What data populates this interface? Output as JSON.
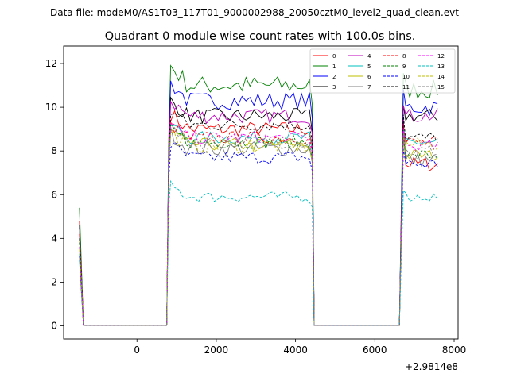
{
  "suptitle": "Data file: modeM0/AS1T03_117T01_9000002988_20050cztM0_level2_quad_clean.evt",
  "chart_data": {
    "type": "line",
    "title": "Quadrant 0 module wise count rates with 100.0s bins.",
    "xlabel": "",
    "ylabel": "",
    "offset_text": "+2.9814e8",
    "xlim": [
      -1850,
      8100
    ],
    "ylim": [
      -0.6,
      12.8
    ],
    "xticks": [
      0,
      2000,
      4000,
      6000,
      8000
    ],
    "xtick_labels": [
      "0",
      "2000",
      "4000",
      "6000",
      "8000"
    ],
    "yticks": [
      0,
      2,
      4,
      6,
      8,
      10,
      12
    ],
    "ytick_labels": [
      "0",
      "2",
      "4",
      "6",
      "8",
      "10",
      "12"
    ],
    "legend_position": "top-right",
    "segments": [
      {
        "x_start": -1450,
        "x_end": 730,
        "active_x_start": -1350,
        "active_x_end": 730,
        "dead": true
      },
      {
        "x_start": 750,
        "x_end": 4450
      },
      {
        "x_start": 4450,
        "x_end": 6650,
        "active_x_start": 4450,
        "active_x_end": 6650,
        "dead": true
      },
      {
        "x_start": 6650,
        "x_end": 7650
      }
    ],
    "series": [
      {
        "name": "0",
        "color": "#ff0000",
        "dash": "solid",
        "first": 4.8,
        "ramp": 7.5,
        "level": 9.0,
        "tail": 7.4,
        "noise": 0.35
      },
      {
        "name": "1",
        "color": "#008000",
        "dash": "solid",
        "first": 5.4,
        "ramp": 8.5,
        "level": 11.0,
        "tail": 10.8,
        "noise": 0.45
      },
      {
        "name": "2",
        "color": "#0000ff",
        "dash": "solid",
        "first": 4.5,
        "ramp": 8.0,
        "level": 10.3,
        "tail": 10.0,
        "noise": 0.4
      },
      {
        "name": "3",
        "color": "#000000",
        "dash": "solid",
        "first": 4.6,
        "ramp": 7.6,
        "level": 9.6,
        "tail": 9.6,
        "noise": 0.35
      },
      {
        "name": "4",
        "color": "#bf00bf",
        "dash": "solid",
        "first": 4.2,
        "ramp": 7.8,
        "level": 9.6,
        "tail": 9.6,
        "noise": 0.35
      },
      {
        "name": "5",
        "color": "#00bfbf",
        "dash": "solid",
        "first": 3.0,
        "ramp": 7.0,
        "level": 8.6,
        "tail": 8.4,
        "noise": 0.3
      },
      {
        "name": "6",
        "color": "#bfbf00",
        "dash": "solid",
        "first": 4.0,
        "ramp": 6.9,
        "level": 8.3,
        "tail": 7.8,
        "noise": 0.3
      },
      {
        "name": "7",
        "color": "#808080",
        "dash": "solid",
        "first": 4.4,
        "ramp": 7.0,
        "level": 8.1,
        "tail": 7.6,
        "noise": 0.35
      },
      {
        "name": "8",
        "color": "#ff0000",
        "dash": "dashed",
        "first": 4.2,
        "ramp": 7.2,
        "level": 8.6,
        "tail": 8.4,
        "noise": 0.3
      },
      {
        "name": "9",
        "color": "#008000",
        "dash": "dashed",
        "first": 3.8,
        "ramp": 7.0,
        "level": 8.4,
        "tail": 7.8,
        "noise": 0.3
      },
      {
        "name": "10",
        "color": "#0000ff",
        "dash": "dashed",
        "first": 3.2,
        "ramp": 6.6,
        "level": 7.7,
        "tail": 7.4,
        "noise": 0.3
      },
      {
        "name": "11",
        "color": "#000000",
        "dash": "dashed",
        "first": 4.0,
        "ramp": 7.6,
        "level": 9.2,
        "tail": 8.6,
        "noise": 0.3
      },
      {
        "name": "12",
        "color": "#ff00ff",
        "dash": "dashed",
        "first": 3.6,
        "ramp": 7.4,
        "level": 8.6,
        "tail": 8.2,
        "noise": 0.3
      },
      {
        "name": "13",
        "color": "#00bfbf",
        "dash": "dashed",
        "first": 3.3,
        "ramp": 5.4,
        "level": 5.9,
        "tail": 5.9,
        "noise": 0.25
      },
      {
        "name": "14",
        "color": "#bfbf00",
        "dash": "dashed",
        "first": 3.5,
        "ramp": 7.0,
        "level": 8.2,
        "tail": 8.3,
        "noise": 0.3
      },
      {
        "name": "15",
        "color": "#808080",
        "dash": "dashed",
        "first": 3.1,
        "ramp": 7.2,
        "level": 8.4,
        "tail": 8.0,
        "noise": 0.3
      }
    ]
  }
}
